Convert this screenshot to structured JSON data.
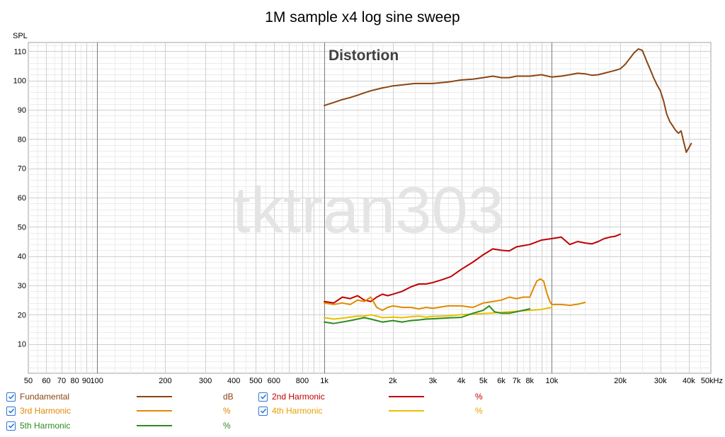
{
  "chart_data": {
    "type": "line",
    "title": "1M sample x4 log sine sweep",
    "ylabel": "SPL",
    "annotation": "Distortion",
    "watermark": "tktran303",
    "x_scale": "log",
    "xlim": [
      50,
      50000
    ],
    "ylim": [
      0,
      113
    ],
    "grid": true,
    "legend_placement": "bottom",
    "x_ticks": [
      {
        "v": 50,
        "label": "50"
      },
      {
        "v": 60,
        "label": "60"
      },
      {
        "v": 70,
        "label": "70"
      },
      {
        "v": 80,
        "label": "80"
      },
      {
        "v": 90,
        "label": "90"
      },
      {
        "v": 100,
        "label": "100"
      },
      {
        "v": 200,
        "label": "200"
      },
      {
        "v": 300,
        "label": "300"
      },
      {
        "v": 400,
        "label": "400"
      },
      {
        "v": 500,
        "label": "500"
      },
      {
        "v": 600,
        "label": "600"
      },
      {
        "v": 800,
        "label": "800"
      },
      {
        "v": 1000,
        "label": "1k"
      },
      {
        "v": 2000,
        "label": "2k"
      },
      {
        "v": 3000,
        "label": "3k"
      },
      {
        "v": 4000,
        "label": "4k"
      },
      {
        "v": 5000,
        "label": "5k"
      },
      {
        "v": 6000,
        "label": "6k"
      },
      {
        "v": 7000,
        "label": "7k"
      },
      {
        "v": 8000,
        "label": "8k"
      },
      {
        "v": 10000,
        "label": "10k"
      },
      {
        "v": 20000,
        "label": "20k"
      },
      {
        "v": 30000,
        "label": "30k"
      },
      {
        "v": 40000,
        "label": "40k"
      },
      {
        "v": 50000,
        "label": "50kHz"
      }
    ],
    "y_ticks": [
      10,
      20,
      30,
      40,
      50,
      60,
      70,
      80,
      90,
      100,
      110
    ],
    "series": [
      {
        "name": "Fundamental",
        "unit": "dB",
        "color": "#8b4513",
        "points": [
          [
            1000,
            91.5
          ],
          [
            1100,
            92.5
          ],
          [
            1200,
            93.5
          ],
          [
            1300,
            94.2
          ],
          [
            1400,
            95
          ],
          [
            1500,
            95.8
          ],
          [
            1600,
            96.5
          ],
          [
            1700,
            97
          ],
          [
            1800,
            97.5
          ],
          [
            1900,
            97.8
          ],
          [
            2000,
            98.2
          ],
          [
            2200,
            98.5
          ],
          [
            2500,
            99
          ],
          [
            2800,
            99
          ],
          [
            3000,
            99
          ],
          [
            3500,
            99.5
          ],
          [
            4000,
            100.2
          ],
          [
            4500,
            100.5
          ],
          [
            5000,
            101
          ],
          [
            5500,
            101.5
          ],
          [
            6000,
            101
          ],
          [
            6500,
            101
          ],
          [
            7000,
            101.5
          ],
          [
            8000,
            101.5
          ],
          [
            9000,
            102
          ],
          [
            10000,
            101.2
          ],
          [
            11000,
            101.5
          ],
          [
            12000,
            102
          ],
          [
            13000,
            102.5
          ],
          [
            14000,
            102.3
          ],
          [
            15000,
            101.8
          ],
          [
            16000,
            102
          ],
          [
            17000,
            102.5
          ],
          [
            18000,
            103
          ],
          [
            19000,
            103.5
          ],
          [
            20000,
            104
          ],
          [
            21000,
            105.5
          ],
          [
            22000,
            107.5
          ],
          [
            23000,
            109.5
          ],
          [
            24000,
            110.8
          ],
          [
            25000,
            110.3
          ],
          [
            26000,
            107
          ],
          [
            27000,
            104
          ],
          [
            28000,
            101
          ],
          [
            29000,
            98.5
          ],
          [
            30000,
            96.5
          ],
          [
            31000,
            93
          ],
          [
            32000,
            88.5
          ],
          [
            33000,
            86
          ],
          [
            34000,
            84.5
          ],
          [
            35000,
            83
          ],
          [
            36000,
            82
          ],
          [
            37000,
            82.8
          ],
          [
            38000,
            79
          ],
          [
            39000,
            75.5
          ],
          [
            40000,
            77
          ],
          [
            41000,
            78.5
          ]
        ]
      },
      {
        "name": "2nd Harmonic",
        "unit": "%",
        "color": "#c00000",
        "points": [
          [
            1000,
            24.5
          ],
          [
            1100,
            24
          ],
          [
            1200,
            26
          ],
          [
            1300,
            25.5
          ],
          [
            1400,
            26.5
          ],
          [
            1500,
            25
          ],
          [
            1600,
            24.5
          ],
          [
            1700,
            26
          ],
          [
            1800,
            27
          ],
          [
            1900,
            26.5
          ],
          [
            2000,
            27
          ],
          [
            2200,
            28
          ],
          [
            2400,
            29.5
          ],
          [
            2600,
            30.5
          ],
          [
            2800,
            30.5
          ],
          [
            3000,
            31
          ],
          [
            3300,
            32
          ],
          [
            3600,
            33
          ],
          [
            4000,
            35.5
          ],
          [
            4500,
            38
          ],
          [
            5000,
            40.5
          ],
          [
            5500,
            42.5
          ],
          [
            6000,
            42
          ],
          [
            6500,
            41.8
          ],
          [
            7000,
            43.2
          ],
          [
            8000,
            44
          ],
          [
            9000,
            45.5
          ],
          [
            10000,
            46
          ],
          [
            11000,
            46.5
          ],
          [
            12000,
            44
          ],
          [
            13000,
            45
          ],
          [
            14000,
            44.5
          ],
          [
            15000,
            44.2
          ],
          [
            16000,
            45
          ],
          [
            17000,
            46
          ],
          [
            18000,
            46.5
          ],
          [
            19000,
            46.8
          ],
          [
            20000,
            47.5
          ]
        ]
      },
      {
        "name": "3rd Harmonic",
        "unit": "%",
        "color": "#e08a00",
        "points": [
          [
            1000,
            24
          ],
          [
            1100,
            23.5
          ],
          [
            1200,
            24
          ],
          [
            1300,
            23.5
          ],
          [
            1400,
            25
          ],
          [
            1500,
            24.5
          ],
          [
            1600,
            26
          ],
          [
            1700,
            22.5
          ],
          [
            1800,
            21.5
          ],
          [
            1900,
            22.5
          ],
          [
            2000,
            23
          ],
          [
            2200,
            22.5
          ],
          [
            2400,
            22.5
          ],
          [
            2600,
            22
          ],
          [
            2800,
            22.5
          ],
          [
            3000,
            22.2
          ],
          [
            3500,
            23
          ],
          [
            4000,
            23
          ],
          [
            4500,
            22.5
          ],
          [
            5000,
            24
          ],
          [
            5500,
            24.5
          ],
          [
            6000,
            25
          ],
          [
            6500,
            26
          ],
          [
            7000,
            25.5
          ],
          [
            7500,
            26
          ],
          [
            8000,
            26
          ],
          [
            8300,
            29
          ],
          [
            8600,
            31.5
          ],
          [
            8900,
            32.2
          ],
          [
            9200,
            31.5
          ],
          [
            9500,
            27.5
          ],
          [
            9800,
            24.5
          ],
          [
            10000,
            23.5
          ],
          [
            11000,
            23.5
          ],
          [
            12000,
            23.2
          ],
          [
            13000,
            23.6
          ],
          [
            14000,
            24.2
          ]
        ]
      },
      {
        "name": "4th Harmonic",
        "unit": "%",
        "color": "#e8c000",
        "points": [
          [
            1000,
            19
          ],
          [
            1100,
            18.5
          ],
          [
            1200,
            18.8
          ],
          [
            1300,
            19.2
          ],
          [
            1400,
            19.5
          ],
          [
            1500,
            19.5
          ],
          [
            1600,
            20
          ],
          [
            1700,
            19.5
          ],
          [
            1800,
            19
          ],
          [
            2000,
            19.2
          ],
          [
            2200,
            19
          ],
          [
            2400,
            19.3
          ],
          [
            2600,
            19.5
          ],
          [
            2800,
            19.2
          ],
          [
            3000,
            19.4
          ],
          [
            3500,
            19.6
          ],
          [
            4000,
            20
          ],
          [
            4500,
            20.2
          ],
          [
            5000,
            20.4
          ],
          [
            5500,
            20.6
          ],
          [
            6000,
            20.8
          ],
          [
            6500,
            21
          ],
          [
            7000,
            21.2
          ],
          [
            7500,
            21.4
          ],
          [
            8000,
            21.5
          ],
          [
            9000,
            21.8
          ],
          [
            10000,
            22.5
          ]
        ]
      },
      {
        "name": "5th Harmonic",
        "unit": "%",
        "color": "#2e8b20",
        "points": [
          [
            1000,
            17.5
          ],
          [
            1100,
            17
          ],
          [
            1200,
            17.5
          ],
          [
            1300,
            18
          ],
          [
            1400,
            18.5
          ],
          [
            1500,
            19
          ],
          [
            1600,
            18.5
          ],
          [
            1700,
            18
          ],
          [
            1800,
            17.5
          ],
          [
            2000,
            18
          ],
          [
            2200,
            17.5
          ],
          [
            2400,
            18
          ],
          [
            2600,
            18.2
          ],
          [
            2800,
            18.5
          ],
          [
            3000,
            18.6
          ],
          [
            3500,
            18.9
          ],
          [
            4000,
            19.1
          ],
          [
            4500,
            20.5
          ],
          [
            5000,
            21.5
          ],
          [
            5300,
            23
          ],
          [
            5600,
            21
          ],
          [
            6000,
            20.5
          ],
          [
            6500,
            20.5
          ],
          [
            7000,
            21
          ],
          [
            7500,
            21.5
          ],
          [
            8000,
            22
          ]
        ]
      }
    ]
  },
  "legend": {
    "items": [
      {
        "label": "Fundamental",
        "unit": "dB",
        "color": "#8b4513",
        "label_color": "#8b4513"
      },
      {
        "label": "2nd Harmonic",
        "unit": "%",
        "color": "#c00000",
        "label_color": "#c00000"
      },
      {
        "label": "3rd Harmonic",
        "unit": "%",
        "color": "#e08a00",
        "label_color": "#e08a00"
      },
      {
        "label": "4th Harmonic",
        "unit": "%",
        "color": "#e8c000",
        "label_color": "#e8a000"
      },
      {
        "label": "5th Harmonic",
        "unit": "%",
        "color": "#2e8b20",
        "label_color": "#2e8b20"
      }
    ]
  }
}
